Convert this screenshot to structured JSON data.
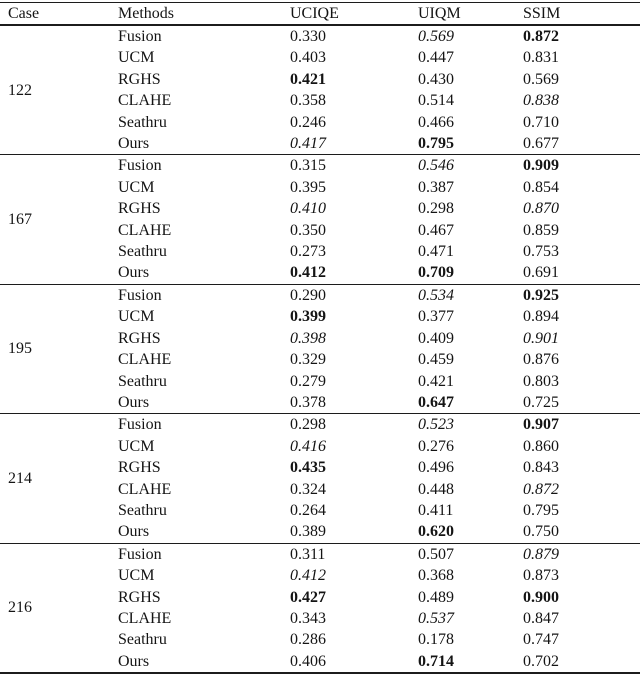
{
  "colors": {
    "background": "#ffffff",
    "text": "#141414",
    "rule": "#1c1c1c"
  },
  "table": {
    "columns": [
      {
        "id": "case",
        "label": "Case"
      },
      {
        "id": "methods",
        "label": "Methods"
      },
      {
        "id": "uciqe",
        "label": "UCIQE"
      },
      {
        "id": "uiqm",
        "label": "UIQM"
      },
      {
        "id": "ssim",
        "label": "SSIM"
      }
    ],
    "groups": [
      {
        "case": "122",
        "rows": [
          {
            "method": "Fusion",
            "uciqe": {
              "value": "0.330",
              "emphasis": "none"
            },
            "uiqm": {
              "value": "0.569",
              "emphasis": "italic"
            },
            "ssim": {
              "value": "0.872",
              "emphasis": "bold"
            }
          },
          {
            "method": "UCM",
            "uciqe": {
              "value": "0.403",
              "emphasis": "none"
            },
            "uiqm": {
              "value": "0.447",
              "emphasis": "none"
            },
            "ssim": {
              "value": "0.831",
              "emphasis": "none"
            }
          },
          {
            "method": "RGHS",
            "uciqe": {
              "value": "0.421",
              "emphasis": "bold"
            },
            "uiqm": {
              "value": "0.430",
              "emphasis": "none"
            },
            "ssim": {
              "value": "0.569",
              "emphasis": "none"
            }
          },
          {
            "method": "CLAHE",
            "uciqe": {
              "value": "0.358",
              "emphasis": "none"
            },
            "uiqm": {
              "value": "0.514",
              "emphasis": "none"
            },
            "ssim": {
              "value": "0.838",
              "emphasis": "italic"
            }
          },
          {
            "method": "Seathru",
            "uciqe": {
              "value": "0.246",
              "emphasis": "none"
            },
            "uiqm": {
              "value": "0.466",
              "emphasis": "none"
            },
            "ssim": {
              "value": "0.710",
              "emphasis": "none"
            }
          },
          {
            "method": "Ours",
            "uciqe": {
              "value": "0.417",
              "emphasis": "italic"
            },
            "uiqm": {
              "value": "0.795",
              "emphasis": "bold"
            },
            "ssim": {
              "value": "0.677",
              "emphasis": "none"
            }
          }
        ]
      },
      {
        "case": "167",
        "rows": [
          {
            "method": "Fusion",
            "uciqe": {
              "value": "0.315",
              "emphasis": "none"
            },
            "uiqm": {
              "value": "0.546",
              "emphasis": "italic"
            },
            "ssim": {
              "value": "0.909",
              "emphasis": "bold"
            }
          },
          {
            "method": "UCM",
            "uciqe": {
              "value": "0.395",
              "emphasis": "none"
            },
            "uiqm": {
              "value": "0.387",
              "emphasis": "none"
            },
            "ssim": {
              "value": "0.854",
              "emphasis": "none"
            }
          },
          {
            "method": "RGHS",
            "uciqe": {
              "value": "0.410",
              "emphasis": "italic"
            },
            "uiqm": {
              "value": "0.298",
              "emphasis": "none"
            },
            "ssim": {
              "value": "0.870",
              "emphasis": "italic"
            }
          },
          {
            "method": "CLAHE",
            "uciqe": {
              "value": "0.350",
              "emphasis": "none"
            },
            "uiqm": {
              "value": "0.467",
              "emphasis": "none"
            },
            "ssim": {
              "value": "0.859",
              "emphasis": "none"
            }
          },
          {
            "method": "Seathru",
            "uciqe": {
              "value": "0.273",
              "emphasis": "none"
            },
            "uiqm": {
              "value": "0.471",
              "emphasis": "none"
            },
            "ssim": {
              "value": "0.753",
              "emphasis": "none"
            }
          },
          {
            "method": "Ours",
            "uciqe": {
              "value": "0.412",
              "emphasis": "bold"
            },
            "uiqm": {
              "value": "0.709",
              "emphasis": "bold"
            },
            "ssim": {
              "value": "0.691",
              "emphasis": "none"
            }
          }
        ]
      },
      {
        "case": "195",
        "rows": [
          {
            "method": "Fusion",
            "uciqe": {
              "value": "0.290",
              "emphasis": "none"
            },
            "uiqm": {
              "value": "0.534",
              "emphasis": "italic"
            },
            "ssim": {
              "value": "0.925",
              "emphasis": "bold"
            }
          },
          {
            "method": "UCM",
            "uciqe": {
              "value": "0.399",
              "emphasis": "bold"
            },
            "uiqm": {
              "value": "0.377",
              "emphasis": "none"
            },
            "ssim": {
              "value": "0.894",
              "emphasis": "none"
            }
          },
          {
            "method": "RGHS",
            "uciqe": {
              "value": "0.398",
              "emphasis": "italic"
            },
            "uiqm": {
              "value": "0.409",
              "emphasis": "none"
            },
            "ssim": {
              "value": "0.901",
              "emphasis": "italic"
            }
          },
          {
            "method": "CLAHE",
            "uciqe": {
              "value": "0.329",
              "emphasis": "none"
            },
            "uiqm": {
              "value": "0.459",
              "emphasis": "none"
            },
            "ssim": {
              "value": "0.876",
              "emphasis": "none"
            }
          },
          {
            "method": "Seathru",
            "uciqe": {
              "value": "0.279",
              "emphasis": "none"
            },
            "uiqm": {
              "value": "0.421",
              "emphasis": "none"
            },
            "ssim": {
              "value": "0.803",
              "emphasis": "none"
            }
          },
          {
            "method": "Ours",
            "uciqe": {
              "value": "0.378",
              "emphasis": "none"
            },
            "uiqm": {
              "value": "0.647",
              "emphasis": "bold"
            },
            "ssim": {
              "value": "0.725",
              "emphasis": "none"
            }
          }
        ]
      },
      {
        "case": "214",
        "rows": [
          {
            "method": "Fusion",
            "uciqe": {
              "value": "0.298",
              "emphasis": "none"
            },
            "uiqm": {
              "value": "0.523",
              "emphasis": "italic"
            },
            "ssim": {
              "value": "0.907",
              "emphasis": "bold"
            }
          },
          {
            "method": "UCM",
            "uciqe": {
              "value": "0.416",
              "emphasis": "italic"
            },
            "uiqm": {
              "value": "0.276",
              "emphasis": "none"
            },
            "ssim": {
              "value": "0.860",
              "emphasis": "none"
            }
          },
          {
            "method": "RGHS",
            "uciqe": {
              "value": "0.435",
              "emphasis": "bold"
            },
            "uiqm": {
              "value": "0.496",
              "emphasis": "none"
            },
            "ssim": {
              "value": "0.843",
              "emphasis": "none"
            }
          },
          {
            "method": "CLAHE",
            "uciqe": {
              "value": "0.324",
              "emphasis": "none"
            },
            "uiqm": {
              "value": "0.448",
              "emphasis": "none"
            },
            "ssim": {
              "value": "0.872",
              "emphasis": "italic"
            }
          },
          {
            "method": "Seathru",
            "uciqe": {
              "value": "0.264",
              "emphasis": "none"
            },
            "uiqm": {
              "value": "0.411",
              "emphasis": "none"
            },
            "ssim": {
              "value": "0.795",
              "emphasis": "none"
            }
          },
          {
            "method": "Ours",
            "uciqe": {
              "value": "0.389",
              "emphasis": "none"
            },
            "uiqm": {
              "value": "0.620",
              "emphasis": "bold"
            },
            "ssim": {
              "value": "0.750",
              "emphasis": "none"
            }
          }
        ]
      },
      {
        "case": "216",
        "rows": [
          {
            "method": "Fusion",
            "uciqe": {
              "value": "0.311",
              "emphasis": "none"
            },
            "uiqm": {
              "value": "0.507",
              "emphasis": "none"
            },
            "ssim": {
              "value": "0.879",
              "emphasis": "italic"
            }
          },
          {
            "method": "UCM",
            "uciqe": {
              "value": "0.412",
              "emphasis": "italic"
            },
            "uiqm": {
              "value": "0.368",
              "emphasis": "none"
            },
            "ssim": {
              "value": "0.873",
              "emphasis": "none"
            }
          },
          {
            "method": "RGHS",
            "uciqe": {
              "value": "0.427",
              "emphasis": "bold"
            },
            "uiqm": {
              "value": "0.489",
              "emphasis": "none"
            },
            "ssim": {
              "value": "0.900",
              "emphasis": "bold"
            }
          },
          {
            "method": "CLAHE",
            "uciqe": {
              "value": "0.343",
              "emphasis": "none"
            },
            "uiqm": {
              "value": "0.537",
              "emphasis": "italic"
            },
            "ssim": {
              "value": "0.847",
              "emphasis": "none"
            }
          },
          {
            "method": "Seathru",
            "uciqe": {
              "value": "0.286",
              "emphasis": "none"
            },
            "uiqm": {
              "value": "0.178",
              "emphasis": "none"
            },
            "ssim": {
              "value": "0.747",
              "emphasis": "none"
            }
          },
          {
            "method": "Ours",
            "uciqe": {
              "value": "0.406",
              "emphasis": "none"
            },
            "uiqm": {
              "value": "0.714",
              "emphasis": "bold"
            },
            "ssim": {
              "value": "0.702",
              "emphasis": "none"
            }
          }
        ]
      }
    ]
  }
}
